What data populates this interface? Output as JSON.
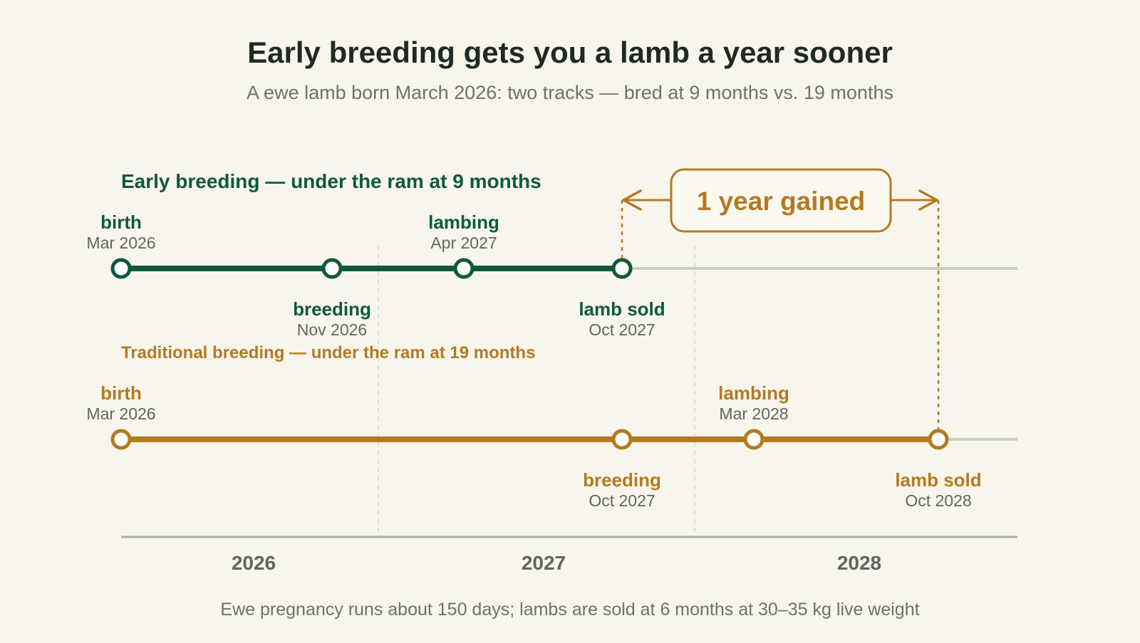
{
  "title": "Early breeding gets you a lamb a year sooner",
  "subtitle": "A ewe lamb born March 2026: two tracks — bred at 9 months vs. 19 months",
  "footnote": "Ewe pregnancy runs about 150 days; lambs are sold at 6 months at 30–35 kg live weight",
  "colors": {
    "early": "#0f5a3c",
    "traditional": "#b47a22",
    "base_line": "#c8cfbc",
    "axis": "#a6b29e",
    "gridline": "#d8d7cc",
    "background": "#f8f5ec"
  },
  "chart_data": {
    "type": "timeline",
    "x_range": [
      "2026-03",
      "2028-12"
    ],
    "years": [
      "2026",
      "2027",
      "2028"
    ],
    "year_boundaries": [
      "2027-01",
      "2028-01"
    ],
    "tracks": [
      {
        "id": "early",
        "title_bold": "Early breeding",
        "title_rest": " — under the ram at 9 months",
        "events": [
          {
            "label": "birth",
            "date_label": "Mar 2026",
            "date": "2026-03",
            "label_side": "above"
          },
          {
            "label": "breeding",
            "date_label": "Nov 2026",
            "date": "2026-11",
            "label_side": "below"
          },
          {
            "label": "lambing",
            "date_label": "Apr 2027",
            "date": "2027-04",
            "label_side": "above"
          },
          {
            "label": "lamb sold",
            "date_label": "Oct 2027",
            "date": "2027-10",
            "label_side": "below"
          }
        ]
      },
      {
        "id": "traditional",
        "title_bold": "Traditional breeding",
        "title_rest": " — under the ram at 19 months",
        "events": [
          {
            "label": "birth",
            "date_label": "Mar 2026",
            "date": "2026-03",
            "label_side": "above"
          },
          {
            "label": "breeding",
            "date_label": "Oct 2027",
            "date": "2027-10",
            "label_side": "below"
          },
          {
            "label": "lambing",
            "date_label": "Mar 2028",
            "date": "2028-03",
            "label_side": "above"
          },
          {
            "label": "lamb sold",
            "date_label": "Oct 2028",
            "date": "2028-10",
            "label_side": "below"
          }
        ]
      }
    ],
    "annotation": {
      "text": "1 year gained",
      "from_date": "2027-10",
      "to_date": "2028-10"
    }
  }
}
